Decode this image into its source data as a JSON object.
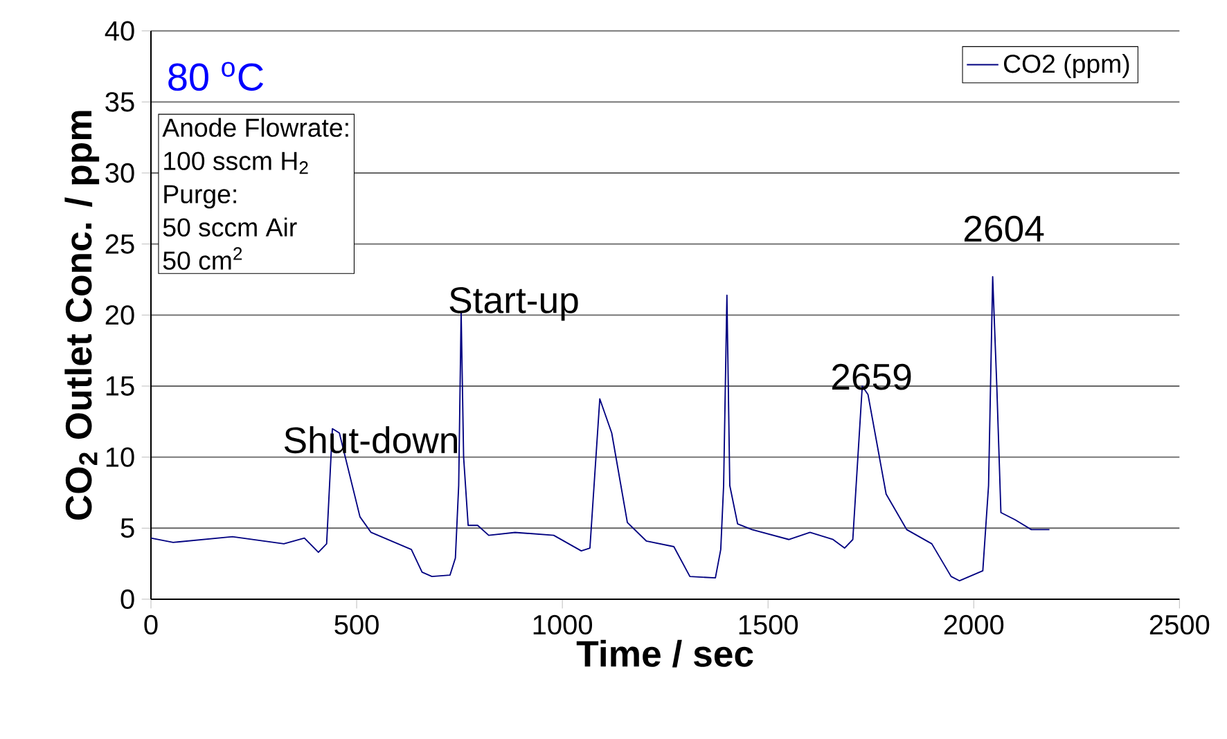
{
  "chart_data": {
    "type": "line",
    "xlabel": "Time / sec",
    "ylabel": "CO$_{2}$ Outlet Conc. / ppm",
    "xlim": [
      0,
      2500
    ],
    "ylim": [
      0,
      40
    ],
    "xticks": [
      0,
      500,
      1000,
      1500,
      2000,
      2500
    ],
    "yticks": [
      0,
      5,
      10,
      15,
      20,
      25,
      30,
      35,
      40
    ],
    "grid": "y",
    "legend": "top right",
    "marker": "none",
    "line_style": "solid",
    "series": [
      {
        "name": "CO2 (ppm)",
        "color": "#000080",
        "x": [
          0,
          54,
          198,
          323,
          373,
          407,
          427,
          441,
          458,
          508,
          535,
          633,
          659,
          683,
          727,
          740,
          748,
          754,
          760,
          771,
          794,
          821,
          885,
          979,
          1046,
          1067,
          1091,
          1120,
          1158,
          1204,
          1271,
          1310,
          1372,
          1385,
          1392,
          1400,
          1407,
          1426,
          1461,
          1551,
          1602,
          1658,
          1686,
          1706,
          1729,
          1743,
          1787,
          1837,
          1898,
          1945,
          1965,
          2022,
          2036,
          2046,
          2056,
          2066,
          2100,
          2140,
          2184
        ],
        "values": [
          4.3,
          4.0,
          4.4,
          3.9,
          4.3,
          3.3,
          3.9,
          12.0,
          11.7,
          5.8,
          4.7,
          3.5,
          1.9,
          1.6,
          1.7,
          2.9,
          8,
          20.2,
          10,
          5.2,
          5.2,
          4.5,
          4.7,
          4.5,
          3.4,
          3.6,
          14.1,
          11.7,
          5.4,
          4.1,
          3.7,
          1.6,
          1.5,
          3.5,
          8,
          21.4,
          8,
          5.3,
          4.9,
          4.2,
          4.7,
          4.2,
          3.6,
          4.2,
          15.0,
          14.4,
          7.4,
          4.9,
          3.9,
          1.6,
          1.3,
          2.0,
          8,
          22.7,
          15,
          6.1,
          5.6,
          4.9,
          4.9
        ]
      }
    ],
    "annotations": [
      {
        "text": "Shut-down",
        "x": 441,
        "y": 12.0
      },
      {
        "text": "Start-up",
        "x": 754,
        "y": 20.2
      },
      {
        "text": "2659",
        "x": 1729,
        "y": 15.0
      },
      {
        "text": "2604",
        "x": 2046,
        "y": 22.7
      },
      "80 $^{o}$C",
      "Anode Flowrate:",
      "100 sscm H$_{2}$",
      "Purge:",
      "50 sccm Air",
      "50 cm$^{2}$"
    ]
  }
}
